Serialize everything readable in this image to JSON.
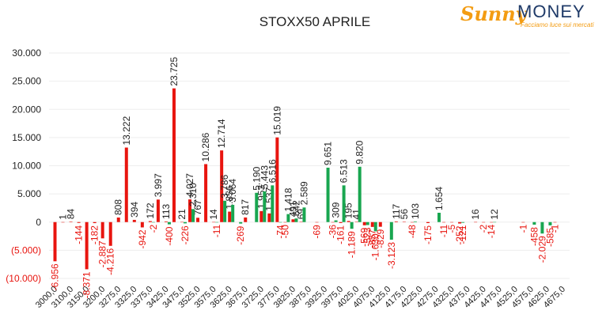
{
  "chart_data": {
    "type": "bar",
    "title": "STOXX50 APRILE",
    "logo": {
      "brand1": "Sunny",
      "brand2": "MONEY",
      "tagline": "Facciamo luce sui mercati"
    },
    "categories": [
      "3000,0",
      null,
      "3100,0",
      null,
      "3150,0",
      null,
      "3200,0",
      null,
      "3275,0",
      null,
      "3325,0",
      null,
      "3375,0",
      null,
      "3425,0",
      null,
      "3475,0",
      null,
      "3525,0",
      null,
      "3575,0",
      null,
      "3625,0",
      null,
      "3675,0",
      null,
      "3725,0",
      null,
      "3775,0",
      null,
      "3825,0",
      null,
      "3875,0",
      null,
      "3925,0",
      null,
      "3975,0",
      null,
      "4025,0",
      null,
      "4075,0",
      null,
      "4125,0",
      null,
      "4175,0",
      null,
      "4225,0",
      null,
      "4275,0",
      null,
      "4325,0",
      null,
      "4375,0",
      null,
      "4425,0",
      null,
      "4475,0",
      null,
      "4525,0",
      null,
      "4575,0",
      null,
      "4625,0",
      null,
      "4675,0",
      null
    ],
    "series": [
      {
        "color": "#e8150f",
        "values": [
          -6956,
          1,
          84,
          -144,
          -8371,
          -182,
          -2887,
          -4216,
          808,
          13222,
          394,
          -942,
          172,
          3997,
          113,
          23725,
          21,
          4027,
          767,
          10286,
          14,
          12714,
          1856,
          null,
          817,
          null,
          1953,
          1537,
          15019,
          -50,
          491,
          69,
          null,
          -69,
          null,
          -36,
          -161,
          195,
          41,
          -569,
          -857,
          -829,
          null,
          117,
          56,
          -48,
          null,
          -175,
          null,
          -11,
          -5,
          -252,
          null,
          16,
          -2,
          -14,
          null,
          null,
          null,
          -1,
          null,
          null,
          null,
          -1,
          null,
          null
        ],
        "value_labels": [
          "-6.956",
          "1",
          "84",
          "-144",
          "-8.371",
          "-182",
          "-2.887",
          "-4.216",
          "808",
          "13.222",
          "394",
          "-942",
          "172",
          "3.997",
          "113",
          "23.725",
          "21",
          "4.027",
          "767",
          "10.286",
          "14",
          "12.714",
          "1.856",
          null,
          "817",
          null,
          "1.953",
          "1.537",
          "15.019",
          "-50",
          "491",
          "69",
          null,
          "-69",
          null,
          "-36",
          "-161",
          "195",
          "41",
          "-569",
          "-857",
          "-829",
          null,
          "117",
          "56",
          "-48",
          null,
          "-175",
          null,
          "-11",
          "-5",
          "-252",
          null,
          "16",
          "-2",
          "-14",
          null,
          null,
          null,
          "-1",
          null,
          null,
          null,
          "-1",
          null,
          null
        ]
      },
      {
        "color": "#19a650",
        "values": [
          null,
          null,
          null,
          null,
          null,
          null,
          null,
          null,
          null,
          null,
          null,
          null,
          -2,
          null,
          -400,
          null,
          -226,
          2310,
          null,
          null,
          -11,
          3786,
          3064,
          -269,
          null,
          5190,
          5443,
          6516,
          -74,
          1418,
          642,
          2589,
          null,
          null,
          9651,
          309,
          6513,
          -1189,
          9820,
          -523,
          -1630,
          null,
          -3123,
          null,
          null,
          103,
          null,
          null,
          1654,
          null,
          null,
          -121,
          null,
          null,
          null,
          12,
          null,
          null,
          null,
          null,
          -458,
          -2029,
          -585,
          null,
          null,
          null
        ],
        "value_labels": [
          null,
          null,
          null,
          null,
          null,
          null,
          null,
          null,
          null,
          null,
          null,
          null,
          "-2",
          null,
          "-400",
          null,
          "-226",
          "2.310",
          null,
          null,
          "-11",
          "3.786",
          "3.064",
          "-269",
          null,
          "5.190",
          "5.443",
          "6.516",
          "-74",
          "1.418",
          "642",
          "2.589",
          null,
          null,
          "9.651",
          "309",
          "6.513",
          "-1.189",
          "9.820",
          "-523",
          "-1.630",
          null,
          "-3.123",
          null,
          null,
          "103",
          null,
          null,
          "1.654",
          null,
          null,
          "-121",
          null,
          null,
          null,
          "12",
          null,
          null,
          null,
          null,
          "-458",
          "-2.029",
          "-585",
          null,
          null,
          null
        ]
      }
    ],
    "ylim": [
      -10000,
      30000
    ],
    "yticks": [
      {
        "value": -10000,
        "label": "(10.000)"
      },
      {
        "value": -5000,
        "label": "(5.000)"
      },
      0,
      {
        "value": 5000,
        "label": "5.000"
      },
      {
        "value": 10000,
        "label": "10.000"
      },
      {
        "value": 15000,
        "label": "15.000"
      },
      {
        "value": 20000,
        "label": "20.000"
      },
      {
        "value": 25000,
        "label": "25.000"
      },
      {
        "value": 30000,
        "label": "30.000"
      }
    ],
    "grid": true
  }
}
